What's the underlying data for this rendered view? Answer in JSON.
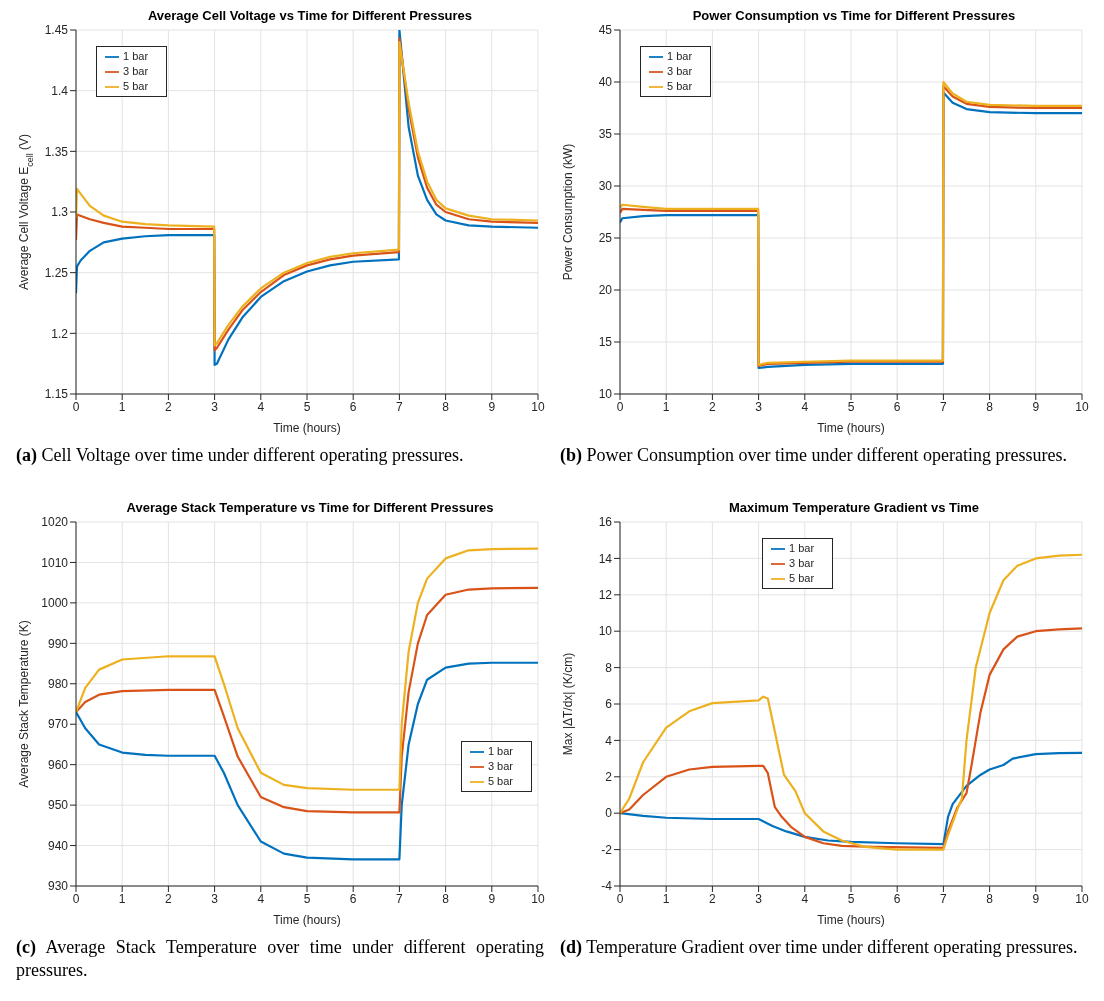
{
  "chart_data": [
    {
      "type": "line",
      "title": "Average Cell Voltage vs Time for Different Pressures",
      "xlabel": "Time (hours)",
      "ylabel": "Average Cell Voltage E$_{cell}$ (V)",
      "xlim": [
        0,
        10
      ],
      "xticks": [
        0,
        1,
        2,
        3,
        4,
        5,
        6,
        7,
        8,
        9,
        10
      ],
      "ylim": [
        1.15,
        1.45
      ],
      "yticks": [
        1.15,
        1.2,
        1.25,
        1.3,
        1.35,
        1.4,
        1.45
      ],
      "grid": true,
      "legend": "top left",
      "marker": "none",
      "line_style": "solid",
      "annotations": [
        "(a) Cell Voltage over time under different operating pressures."
      ],
      "series": [
        {
          "name": "1 bar",
          "color": "#0072bd",
          "x": [
            0,
            0.02,
            0.1,
            0.3,
            0.6,
            1,
            1.5,
            2,
            2.99,
            3.0,
            3.05,
            3.3,
            3.6,
            4,
            4.5,
            5,
            5.5,
            6,
            6.99,
            7.0,
            7.2,
            7.4,
            7.6,
            7.8,
            8,
            8.5,
            9,
            10
          ],
          "values": [
            1.233,
            1.255,
            1.26,
            1.268,
            1.275,
            1.278,
            1.28,
            1.281,
            1.281,
            1.174,
            1.175,
            1.195,
            1.213,
            1.23,
            1.243,
            1.251,
            1.256,
            1.259,
            1.261,
            1.45,
            1.37,
            1.33,
            1.31,
            1.298,
            1.293,
            1.289,
            1.288,
            1.287
          ]
        },
        {
          "name": "3 bar",
          "color": "#d95319",
          "x": [
            0,
            0.02,
            0.3,
            0.6,
            1,
            1.5,
            2,
            2.99,
            3.0,
            3.05,
            3.3,
            3.6,
            4,
            4.5,
            5,
            5.5,
            6,
            6.99,
            7.0,
            7.2,
            7.4,
            7.6,
            7.8,
            8,
            8.5,
            9,
            10
          ],
          "values": [
            1.277,
            1.298,
            1.294,
            1.291,
            1.288,
            1.287,
            1.286,
            1.286,
            1.186,
            1.188,
            1.203,
            1.219,
            1.234,
            1.248,
            1.256,
            1.261,
            1.264,
            1.267,
            1.443,
            1.385,
            1.345,
            1.32,
            1.306,
            1.3,
            1.294,
            1.292,
            1.291
          ]
        },
        {
          "name": "5 bar",
          "color": "#edb120",
          "x": [
            0,
            0.02,
            0.3,
            0.6,
            1,
            1.5,
            2,
            2.99,
            3.0,
            3.05,
            3.3,
            3.6,
            4,
            4.5,
            5,
            5.5,
            6,
            6.99,
            7.0,
            7.2,
            7.4,
            7.6,
            7.8,
            8,
            8.5,
            9,
            10
          ],
          "values": [
            1.295,
            1.319,
            1.305,
            1.297,
            1.292,
            1.29,
            1.289,
            1.288,
            1.19,
            1.192,
            1.207,
            1.222,
            1.237,
            1.25,
            1.258,
            1.263,
            1.266,
            1.269,
            1.44,
            1.39,
            1.35,
            1.325,
            1.31,
            1.303,
            1.297,
            1.294,
            1.293
          ]
        }
      ]
    },
    {
      "type": "line",
      "title": "Power Consumption vs Time for Different Pressures",
      "xlabel": "Time (hours)",
      "ylabel": "Power Consumption (kW)",
      "xlim": [
        0,
        10
      ],
      "xticks": [
        0,
        1,
        2,
        3,
        4,
        5,
        6,
        7,
        8,
        9,
        10
      ],
      "ylim": [
        10,
        45
      ],
      "yticks": [
        10,
        15,
        20,
        25,
        30,
        35,
        40,
        45
      ],
      "grid": true,
      "legend": "top left",
      "marker": "none",
      "line_style": "solid",
      "annotations": [
        "(b) Power Consumption over time under different operating pressures."
      ],
      "series": [
        {
          "name": "1 bar",
          "color": "#0072bd",
          "x": [
            0,
            0.05,
            0.5,
            1,
            2,
            2.99,
            3.0,
            3.2,
            4,
            5,
            6,
            6.99,
            7.0,
            7.2,
            7.5,
            8,
            9,
            10
          ],
          "values": [
            26.5,
            26.9,
            27.1,
            27.2,
            27.2,
            27.2,
            12.5,
            12.6,
            12.8,
            12.9,
            12.9,
            12.9,
            39.0,
            38.0,
            37.4,
            37.1,
            37.0,
            37.0
          ]
        },
        {
          "name": "3 bar",
          "color": "#d95319",
          "x": [
            0,
            0.05,
            0.5,
            1,
            2,
            2.99,
            3.0,
            3.2,
            4,
            5,
            6,
            6.99,
            7.0,
            7.2,
            7.5,
            8,
            9,
            10
          ],
          "values": [
            27.4,
            27.8,
            27.7,
            27.6,
            27.6,
            27.6,
            12.7,
            12.9,
            13.0,
            13.1,
            13.1,
            13.1,
            39.6,
            38.6,
            37.9,
            37.6,
            37.5,
            37.5
          ]
        },
        {
          "name": "5 bar",
          "color": "#edb120",
          "x": [
            0,
            0.05,
            0.5,
            1,
            2,
            2.99,
            3.0,
            3.2,
            4,
            5,
            6,
            6.99,
            7.0,
            7.2,
            7.5,
            8,
            9,
            10
          ],
          "values": [
            27.9,
            28.2,
            28.0,
            27.8,
            27.8,
            27.8,
            12.8,
            13.0,
            13.1,
            13.2,
            13.2,
            13.2,
            40.0,
            38.9,
            38.1,
            37.8,
            37.7,
            37.7
          ]
        }
      ]
    },
    {
      "type": "line",
      "title": "Average Stack Temperature vs Time for Different Pressures",
      "xlabel": "Time (hours)",
      "ylabel": "Average Stack Temperature (K)",
      "xlim": [
        0,
        10
      ],
      "xticks": [
        0,
        1,
        2,
        3,
        4,
        5,
        6,
        7,
        8,
        9,
        10
      ],
      "ylim": [
        930,
        1020
      ],
      "yticks": [
        930,
        940,
        950,
        960,
        970,
        980,
        990,
        1000,
        1010,
        1020
      ],
      "grid": true,
      "legend": "right",
      "marker": "none",
      "line_style": "solid",
      "annotations": [
        "(c) Average Stack Temperature over time under different operating pressures."
      ],
      "series": [
        {
          "name": "1 bar",
          "color": "#0072bd",
          "x": [
            0,
            0.2,
            0.5,
            1,
            1.5,
            2,
            3,
            3.2,
            3.5,
            4,
            4.5,
            5,
            6,
            7,
            7.05,
            7.2,
            7.4,
            7.6,
            8,
            8.5,
            9,
            10
          ],
          "values": [
            973,
            969,
            965,
            963,
            962.4,
            962.2,
            962.2,
            958,
            950,
            941,
            938,
            937,
            936.6,
            936.6,
            950,
            965,
            975,
            981,
            984,
            985,
            985.2,
            985.2
          ]
        },
        {
          "name": "3 bar",
          "color": "#d95319",
          "x": [
            0,
            0.2,
            0.5,
            1,
            2,
            3,
            3.2,
            3.5,
            4,
            4.5,
            5,
            6,
            7,
            7.05,
            7.2,
            7.4,
            7.6,
            8,
            8.5,
            9,
            10
          ],
          "values": [
            973,
            975.5,
            977.3,
            978.2,
            978.5,
            978.5,
            972,
            962,
            952,
            949.5,
            948.5,
            948.2,
            948.2,
            962,
            978,
            990,
            997,
            1002,
            1003.3,
            1003.6,
            1003.7
          ]
        },
        {
          "name": "5 bar",
          "color": "#edb120",
          "x": [
            0,
            0.2,
            0.5,
            1,
            2,
            3,
            3.2,
            3.5,
            4,
            4.5,
            5,
            6,
            7,
            7.05,
            7.2,
            7.4,
            7.6,
            8,
            8.5,
            9,
            10
          ],
          "values": [
            973,
            979,
            983.5,
            986,
            986.8,
            986.8,
            980,
            969,
            958,
            955,
            954.2,
            953.8,
            953.8,
            970,
            988,
            1000,
            1006,
            1011,
            1013,
            1013.3,
            1013.4
          ]
        }
      ]
    },
    {
      "type": "line",
      "title": "Maximum Temperature Gradient vs Time",
      "xlabel": "Time (hours)",
      "ylabel": "Max |ΔT/dx| (K/cm)",
      "xlim": [
        0,
        10
      ],
      "xticks": [
        0,
        1,
        2,
        3,
        4,
        5,
        6,
        7,
        8,
        9,
        10
      ],
      "ylim": [
        -4,
        16
      ],
      "yticks": [
        -4,
        -2,
        0,
        2,
        4,
        6,
        8,
        10,
        12,
        14,
        16
      ],
      "grid": true,
      "legend": "top",
      "marker": "none",
      "line_style": "solid",
      "annotations": [
        "(d) Temperature Gradient over time under different operating pressures."
      ],
      "series": [
        {
          "name": "1 bar",
          "color": "#0072bd",
          "x": [
            0,
            0.5,
            1,
            2,
            3,
            3.3,
            3.6,
            4,
            4.5,
            5,
            6,
            7,
            7.1,
            7.2,
            7.5,
            7.8,
            8,
            8.3,
            8.5,
            9,
            9.5,
            10
          ],
          "values": [
            0,
            -0.15,
            -0.25,
            -0.32,
            -0.32,
            -0.7,
            -1.0,
            -1.3,
            -1.5,
            -1.58,
            -1.65,
            -1.7,
            -0.2,
            0.5,
            1.5,
            2.1,
            2.4,
            2.65,
            3.0,
            3.25,
            3.3,
            3.32
          ]
        },
        {
          "name": "3 bar",
          "color": "#d95319",
          "x": [
            0,
            0.2,
            0.5,
            1,
            1.5,
            2,
            3,
            3.1,
            3.2,
            3.35,
            3.5,
            3.7,
            4,
            4.4,
            4.8,
            5.5,
            7,
            7.1,
            7.3,
            7.5,
            7.6,
            7.8,
            8,
            8.3,
            8.6,
            9,
            9.5,
            10
          ],
          "values": [
            0,
            0.2,
            1.0,
            2.0,
            2.4,
            2.55,
            2.6,
            2.6,
            2.2,
            0.35,
            -0.2,
            -0.75,
            -1.3,
            -1.65,
            -1.8,
            -1.85,
            -1.9,
            -1.0,
            0.3,
            1.1,
            2.5,
            5.5,
            7.6,
            9.0,
            9.7,
            10.0,
            10.1,
            10.15
          ]
        },
        {
          "name": "5 bar",
          "color": "#edb120",
          "x": [
            0,
            0.2,
            0.5,
            1,
            1.5,
            2,
            3,
            3.1,
            3.2,
            3.55,
            3.8,
            4,
            4.4,
            4.8,
            5.3,
            6,
            7,
            7.1,
            7.3,
            7.4,
            7.5,
            7.7,
            8,
            8.3,
            8.6,
            9,
            9.5,
            10
          ],
          "values": [
            0,
            0.8,
            2.8,
            4.7,
            5.6,
            6.05,
            6.2,
            6.4,
            6.3,
            2.1,
            1.2,
            0,
            -1.0,
            -1.5,
            -1.85,
            -2.0,
            -2.0,
            -1.2,
            0.2,
            0.8,
            4.0,
            8.0,
            11.0,
            12.8,
            13.6,
            14.0,
            14.15,
            14.2
          ]
        }
      ]
    }
  ]
}
